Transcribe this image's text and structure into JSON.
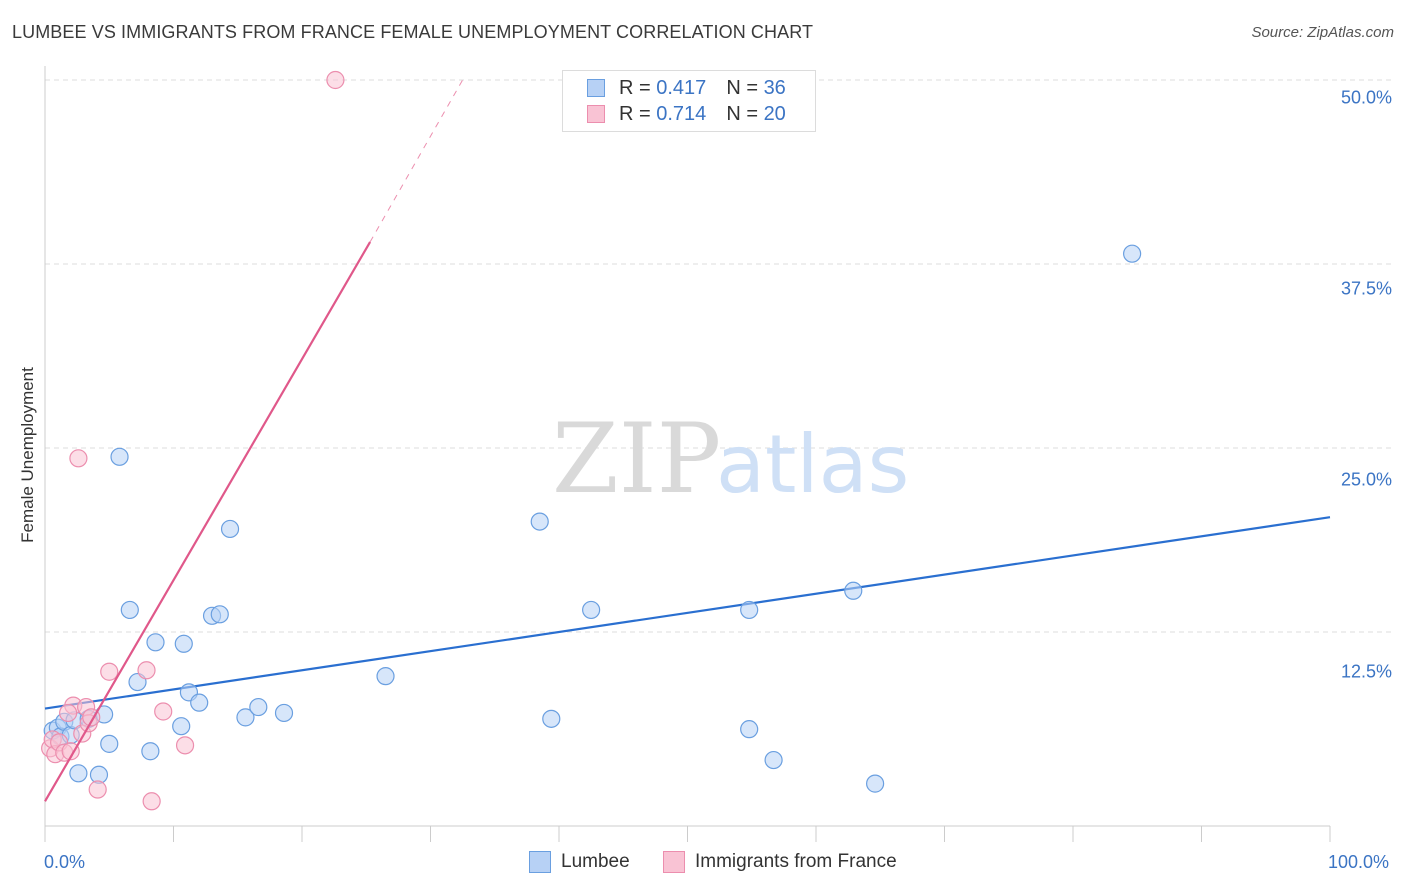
{
  "title": "LUMBEE VS IMMIGRANTS FROM FRANCE FEMALE UNEMPLOYMENT CORRELATION CHART",
  "source": "Source: ZipAtlas.com",
  "watermark": {
    "zip": "ZIP",
    "atlas": "atlas"
  },
  "legend_top": [
    {
      "r_label": "R = ",
      "r_value": "0.417",
      "n_label": "N = ",
      "n_value": "36"
    },
    {
      "r_label": "R = ",
      "r_value": "0.714",
      "n_label": "N = ",
      "n_value": "20"
    }
  ],
  "colors": {
    "lumbee_fill": "#b7d1f5",
    "lumbee_stroke": "#6a9fe0",
    "lumbee_line": "#2a6fd0",
    "france_fill": "#f9c3d4",
    "france_stroke": "#ec8eae",
    "france_line": "#e0588a",
    "tick_text": "#3b74c4",
    "grid": "#dddddd"
  },
  "chart_data": {
    "type": "scatter",
    "title": "LUMBEE VS IMMIGRANTS FROM FRANCE FEMALE UNEMPLOYMENT CORRELATION CHART",
    "xlabel": "",
    "ylabel": "Female Unemployment",
    "xlim": [
      0,
      100
    ],
    "ylim": [
      0,
      50
    ],
    "x_tick_labels": [
      "0.0%",
      "100.0%"
    ],
    "y_ticks": [
      12.5,
      25.0,
      37.5,
      50.0
    ],
    "y_tick_labels": [
      "12.5%",
      "25.0%",
      "37.5%",
      "50.0%"
    ],
    "grid": true,
    "legend_position": "bottom",
    "series": [
      {
        "name": "Lumbee",
        "r": 0.417,
        "n": 36,
        "points": [
          [
            0.6,
            5.8
          ],
          [
            1.0,
            6.0
          ],
          [
            1.2,
            5.4
          ],
          [
            1.5,
            6.4
          ],
          [
            2.0,
            5.5
          ],
          [
            2.3,
            6.5
          ],
          [
            2.6,
            2.9
          ],
          [
            3.4,
            6.6
          ],
          [
            4.2,
            2.8
          ],
          [
            4.6,
            6.9
          ],
          [
            5.0,
            4.9
          ],
          [
            5.8,
            24.4
          ],
          [
            6.6,
            14.0
          ],
          [
            7.2,
            9.1
          ],
          [
            8.2,
            4.4
          ],
          [
            8.6,
            11.8
          ],
          [
            10.6,
            6.1
          ],
          [
            10.8,
            11.7
          ],
          [
            11.2,
            8.4
          ],
          [
            12.0,
            7.7
          ],
          [
            13.0,
            13.6
          ],
          [
            13.6,
            13.7
          ],
          [
            14.4,
            19.5
          ],
          [
            15.6,
            6.7
          ],
          [
            16.6,
            7.4
          ],
          [
            18.6,
            7.0
          ],
          [
            26.5,
            9.5
          ],
          [
            38.5,
            20.0
          ],
          [
            39.4,
            6.6
          ],
          [
            42.5,
            14.0
          ],
          [
            54.8,
            14.0
          ],
          [
            54.8,
            5.9
          ],
          [
            56.7,
            3.8
          ],
          [
            62.9,
            15.3
          ],
          [
            64.6,
            2.2
          ],
          [
            84.6,
            38.2
          ]
        ],
        "trend": {
          "x": [
            0,
            100
          ],
          "y": [
            7.3,
            20.3
          ]
        }
      },
      {
        "name": "Immigrants from France",
        "r": 0.714,
        "n": 20,
        "points": [
          [
            0.4,
            4.6
          ],
          [
            0.6,
            5.2
          ],
          [
            0.8,
            4.2
          ],
          [
            1.1,
            5.0
          ],
          [
            1.5,
            4.3
          ],
          [
            2.0,
            4.4
          ],
          [
            2.2,
            7.5
          ],
          [
            2.6,
            24.3
          ],
          [
            2.9,
            5.6
          ],
          [
            3.2,
            7.4
          ],
          [
            3.4,
            6.3
          ],
          [
            3.6,
            6.7
          ],
          [
            4.1,
            1.8
          ],
          [
            5.0,
            9.8
          ],
          [
            7.9,
            9.9
          ],
          [
            8.3,
            1.0
          ],
          [
            9.2,
            7.1
          ],
          [
            10.9,
            4.8
          ],
          [
            22.6,
            50.0
          ],
          [
            1.8,
            7.0
          ]
        ],
        "trend": {
          "x": [
            0,
            25.3
          ],
          "y": [
            1.0,
            39.0
          ]
        },
        "trend_dashed": {
          "x": [
            25.3,
            32.5
          ],
          "y": [
            39.0,
            50.0
          ]
        }
      }
    ]
  }
}
